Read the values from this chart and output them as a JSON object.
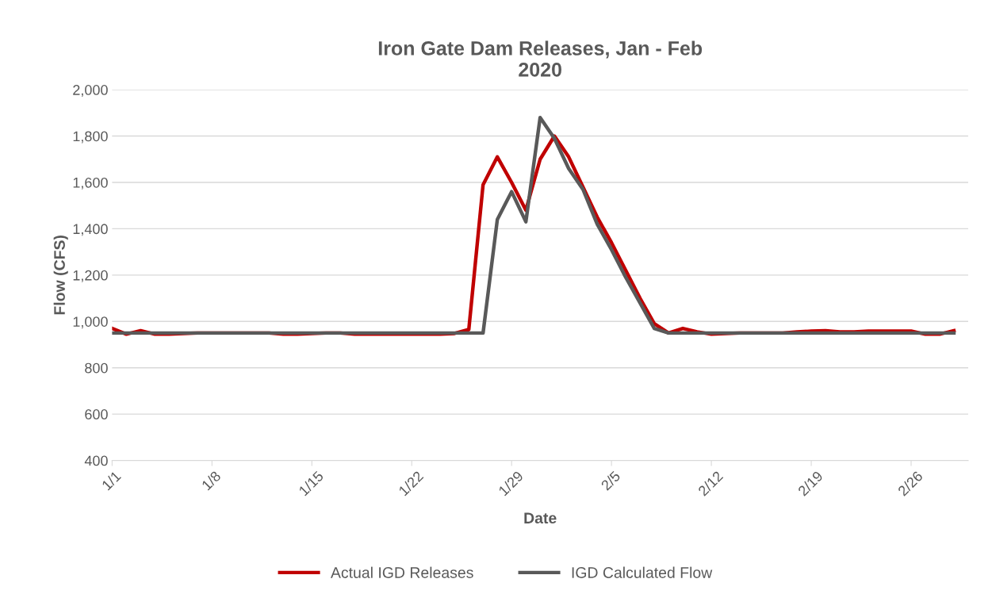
{
  "chart_data": {
    "type": "line",
    "title": "Iron Gate Dam Releases, Jan - Feb\n2020",
    "xlabel": "Date",
    "ylabel": "Flow (CFS)",
    "x": [
      "2020-01-01",
      "2020-01-02",
      "2020-01-03",
      "2020-01-04",
      "2020-01-05",
      "2020-01-06",
      "2020-01-07",
      "2020-01-08",
      "2020-01-09",
      "2020-01-10",
      "2020-01-11",
      "2020-01-12",
      "2020-01-13",
      "2020-01-14",
      "2020-01-15",
      "2020-01-16",
      "2020-01-17",
      "2020-01-18",
      "2020-01-19",
      "2020-01-20",
      "2020-01-21",
      "2020-01-22",
      "2020-01-23",
      "2020-01-24",
      "2020-01-25",
      "2020-01-26",
      "2020-01-27",
      "2020-01-28",
      "2020-01-29",
      "2020-01-30",
      "2020-01-31",
      "2020-02-01",
      "2020-02-02",
      "2020-02-03",
      "2020-02-04",
      "2020-02-05",
      "2020-02-06",
      "2020-02-07",
      "2020-02-08",
      "2020-02-09",
      "2020-02-10",
      "2020-02-11",
      "2020-02-12",
      "2020-02-13",
      "2020-02-14",
      "2020-02-15",
      "2020-02-16",
      "2020-02-17",
      "2020-02-18",
      "2020-02-19",
      "2020-02-20",
      "2020-02-21",
      "2020-02-22",
      "2020-02-23",
      "2020-02-24",
      "2020-02-25",
      "2020-02-26",
      "2020-02-27",
      "2020-02-28",
      "2020-02-29"
    ],
    "series": [
      {
        "name": "Actual IGD Releases",
        "color": "#c00000",
        "values": [
          970,
          945,
          960,
          945,
          945,
          948,
          950,
          950,
          950,
          950,
          950,
          950,
          945,
          945,
          948,
          950,
          950,
          945,
          945,
          945,
          945,
          945,
          945,
          945,
          948,
          965,
          1590,
          1710,
          1600,
          1480,
          1700,
          1800,
          1710,
          1580,
          1450,
          1340,
          1220,
          1100,
          990,
          950,
          970,
          955,
          945,
          948,
          950,
          950,
          950,
          950,
          955,
          958,
          960,
          955,
          955,
          958,
          958,
          958,
          958,
          945,
          945,
          960
        ]
      },
      {
        "name": "IGD Calculated Flow",
        "color": "#595959",
        "values": [
          950,
          950,
          950,
          950,
          950,
          950,
          950,
          950,
          950,
          950,
          950,
          950,
          950,
          950,
          950,
          950,
          950,
          950,
          950,
          950,
          950,
          950,
          950,
          950,
          950,
          950,
          950,
          1440,
          1560,
          1430,
          1880,
          1790,
          1660,
          1570,
          1420,
          1310,
          1190,
          1080,
          970,
          950,
          950,
          950,
          950,
          950,
          950,
          950,
          950,
          950,
          950,
          950,
          950,
          950,
          950,
          950,
          950,
          950,
          950,
          950,
          950,
          950
        ]
      }
    ],
    "xlim": [
      "2020-01-01",
      "2020-03-01"
    ],
    "xticks": [
      {
        "value": "2020-01-01",
        "label": "1/1"
      },
      {
        "value": "2020-01-08",
        "label": "1/8"
      },
      {
        "value": "2020-01-15",
        "label": "1/15"
      },
      {
        "value": "2020-01-22",
        "label": "1/22"
      },
      {
        "value": "2020-01-29",
        "label": "1/29"
      },
      {
        "value": "2020-02-05",
        "label": "2/5"
      },
      {
        "value": "2020-02-12",
        "label": "2/12"
      },
      {
        "value": "2020-02-19",
        "label": "2/19"
      },
      {
        "value": "2020-02-26",
        "label": "2/26"
      }
    ],
    "ylim": [
      400,
      2000
    ],
    "yticks": [
      {
        "value": 400,
        "label": "400"
      },
      {
        "value": 600,
        "label": "600"
      },
      {
        "value": 800,
        "label": "800"
      },
      {
        "value": 1000,
        "label": "1,000"
      },
      {
        "value": 1200,
        "label": "1,200"
      },
      {
        "value": 1400,
        "label": "1,400"
      },
      {
        "value": 1600,
        "label": "1,600"
      },
      {
        "value": 1800,
        "label": "1,800"
      },
      {
        "value": 2000,
        "label": "2,000"
      }
    ],
    "grid": "y",
    "legend": "bottom",
    "marker": "none",
    "line_style": "solid"
  }
}
